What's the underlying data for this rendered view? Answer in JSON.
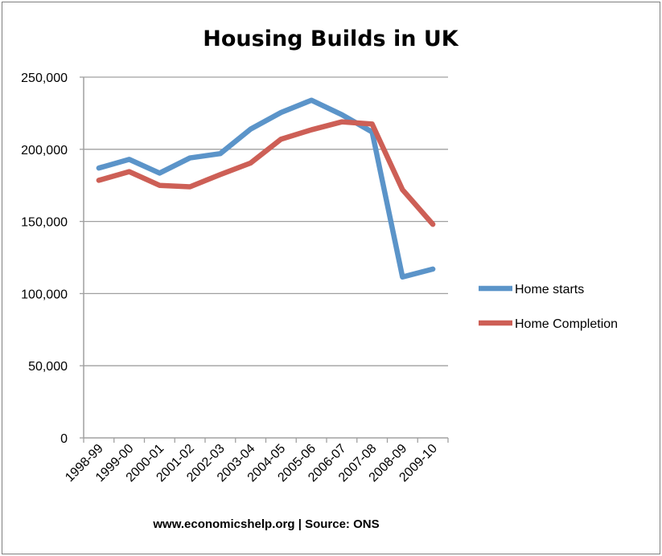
{
  "chart_data": {
    "type": "line",
    "title": "Housing Builds in UK",
    "xlabel": "",
    "ylabel": "",
    "categories": [
      "1998-99",
      "1999-00",
      "2000-01",
      "2001-02",
      "2002-03",
      "2003-04",
      "2004-05",
      "2005-06",
      "2006-07",
      "2007-08",
      "2008-09",
      "2009-10"
    ],
    "ylim": [
      0,
      250000
    ],
    "yticks": [
      0,
      50000,
      100000,
      150000,
      200000,
      250000
    ],
    "ytick_labels": [
      "0",
      "50,000",
      "100,000",
      "150,000",
      "200,000",
      "250,000"
    ],
    "grid": true,
    "legend_position": "right",
    "series": [
      {
        "name": "Home starts",
        "color": "#5b94c9",
        "values": [
          187000,
          193000,
          183500,
          194000,
          197000,
          214000,
          225500,
          234000,
          224000,
          212000,
          111500,
          117000
        ]
      },
      {
        "name": "Home Completion",
        "color": "#cd5f56",
        "values": [
          178500,
          184500,
          175000,
          174000,
          182500,
          190500,
          207000,
          213500,
          219000,
          217500,
          172000,
          148000
        ]
      }
    ],
    "footer": "www.economicshelp.org | Source: ONS"
  }
}
